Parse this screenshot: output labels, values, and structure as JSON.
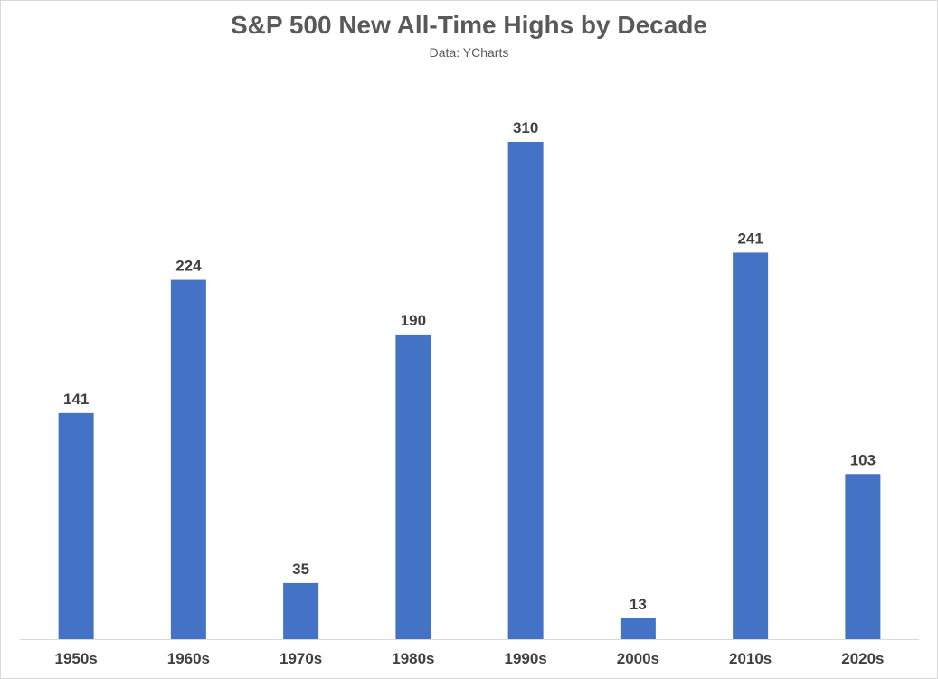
{
  "chart_data": {
    "type": "bar",
    "title": "S&P 500 New All-Time Highs by Decade",
    "subtitle": "Data: YCharts",
    "xlabel": "",
    "ylabel": "",
    "categories": [
      "1950s",
      "1960s",
      "1970s",
      "1980s",
      "1990s",
      "2000s",
      "2010s",
      "2020s"
    ],
    "values": [
      141,
      224,
      35,
      190,
      310,
      13,
      241,
      103
    ],
    "ylim": [
      0,
      350
    ],
    "grid": false,
    "legend": "none",
    "data_labels": true,
    "colors": {
      "bar": "#4472c4",
      "axis": "#d9d9d9",
      "text": "#404040",
      "title": "#595959"
    }
  }
}
